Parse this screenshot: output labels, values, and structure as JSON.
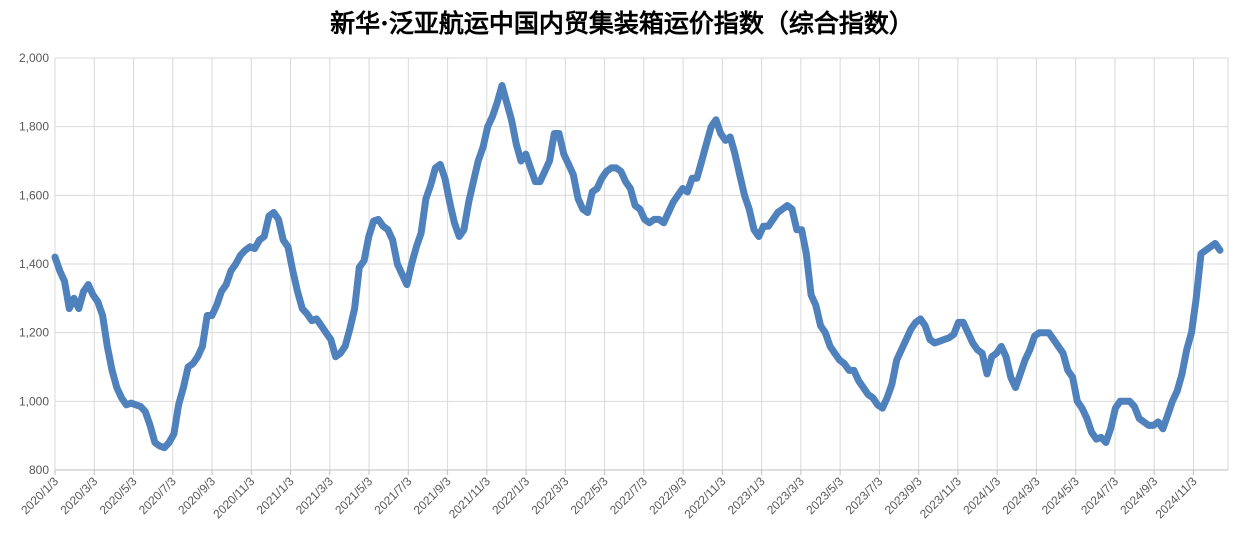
{
  "chart_data": {
    "type": "line",
    "title": "新华·泛亚航运中国内贸集装箱运价指数（综合指数）",
    "xlabel": "",
    "ylabel": "",
    "ylim": [
      800,
      2000
    ],
    "y_ticks": [
      "800",
      "1,000",
      "1,200",
      "1,400",
      "1,600",
      "1,800",
      "2,000"
    ],
    "x_ticks": [
      "2020/1/3",
      "2020/3/3",
      "2020/5/3",
      "2020/7/3",
      "2020/9/3",
      "2020/11/3",
      "2021/1/3",
      "2021/3/3",
      "2021/5/3",
      "2021/7/3",
      "2021/9/3",
      "2021/11/3",
      "2022/1/3",
      "2022/3/3",
      "2022/5/3",
      "2022/7/3",
      "2022/9/3",
      "2022/11/3",
      "2023/1/3",
      "2023/3/3",
      "2023/5/3",
      "2023/7/3",
      "2023/9/3",
      "2023/11/3",
      "2024/1/3",
      "2024/3/3",
      "2024/5/3",
      "2024/7/3",
      "2024/9/3",
      "2024/11/3"
    ],
    "grid": true,
    "line_color": "#4F81BD",
    "series": [
      {
        "values": [
          1420,
          1380,
          1350,
          1270,
          1300,
          1270,
          1320,
          1340,
          1310,
          1290,
          1250,
          1160,
          1090,
          1040,
          1010,
          990,
          995,
          990,
          985,
          970,
          930,
          880,
          870,
          865,
          880,
          905,
          990,
          1040,
          1100,
          1110,
          1130,
          1160,
          1250,
          1250,
          1280,
          1320,
          1340,
          1380,
          1400,
          1425,
          1440,
          1450,
          1445,
          1470,
          1480,
          1540,
          1550,
          1530,
          1470,
          1450,
          1380,
          1320,
          1270,
          1255,
          1235,
          1240,
          1220,
          1200,
          1180,
          1130,
          1140,
          1160,
          1210,
          1270,
          1390,
          1410,
          1480,
          1525,
          1530,
          1510,
          1500,
          1470,
          1400,
          1370,
          1340,
          1400,
          1450,
          1490,
          1590,
          1630,
          1680,
          1690,
          1650,
          1580,
          1520,
          1480,
          1500,
          1580,
          1640,
          1700,
          1740,
          1800,
          1830,
          1870,
          1920,
          1870,
          1820,
          1750,
          1700,
          1720,
          1680,
          1640,
          1640,
          1670,
          1700,
          1780,
          1780,
          1720,
          1690,
          1660,
          1590,
          1560,
          1550,
          1610,
          1620,
          1650,
          1670,
          1680,
          1680,
          1670,
          1640,
          1620,
          1570,
          1560,
          1530,
          1520,
          1530,
          1530,
          1520,
          1550,
          1580,
          1600,
          1620,
          1610,
          1650,
          1650,
          1700,
          1750,
          1800,
          1820,
          1780,
          1760,
          1770,
          1720,
          1660,
          1600,
          1560,
          1500,
          1480,
          1510,
          1510,
          1530,
          1550,
          1560,
          1570,
          1560,
          1500,
          1500,
          1430,
          1310,
          1280,
          1220,
          1200,
          1160,
          1140,
          1120,
          1110,
          1090,
          1090,
          1060,
          1040,
          1020,
          1010,
          990,
          980,
          1010,
          1050,
          1120,
          1150,
          1180,
          1210,
          1230,
          1240,
          1220,
          1180,
          1170,
          1175,
          1180,
          1185,
          1195,
          1230,
          1230,
          1200,
          1170,
          1150,
          1140,
          1080,
          1130,
          1140,
          1160,
          1130,
          1070,
          1040,
          1080,
          1120,
          1150,
          1190,
          1200,
          1200,
          1200,
          1180,
          1160,
          1140,
          1090,
          1070,
          1000,
          980,
          950,
          910,
          890,
          895,
          880,
          920,
          980,
          1000,
          1000,
          1000,
          985,
          950,
          940,
          930,
          930,
          940,
          920,
          960,
          1000,
          1030,
          1080,
          1150,
          1200,
          1300,
          1430,
          1440,
          1450,
          1460,
          1440
        ]
      }
    ]
  }
}
